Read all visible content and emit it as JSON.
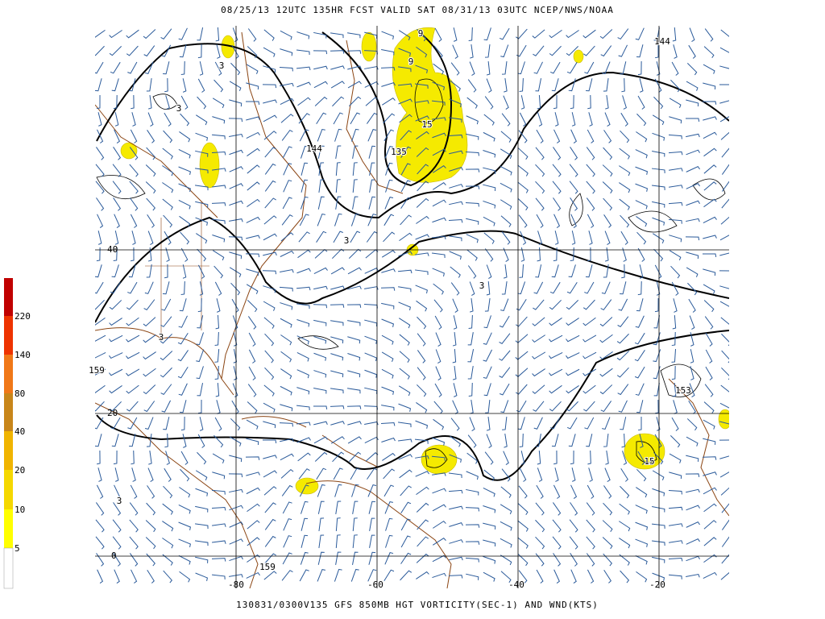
{
  "header": {
    "title": "08/25/13 12UTC  135HR  FCST VALID SAT 08/31/13 03UTC  NCEP/NWS/NOAA"
  },
  "footer": {
    "caption": "130831/0300V135 GFS 850MB HGT VORTICITY(SEC-1) AND WND(KTS)"
  },
  "colorbar": {
    "labels": [
      "5",
      "10",
      "20",
      "40",
      "80",
      "140",
      "220"
    ]
  },
  "map": {
    "lat_labels": [
      "40",
      "20",
      "0"
    ],
    "lon_labels": [
      "-80",
      "-60",
      "-40",
      "-20"
    ],
    "contour_labels": [
      "144",
      "144",
      "135",
      "153",
      "159",
      "159",
      "15",
      "15",
      "9",
      "9",
      "3",
      "3",
      "3",
      "3",
      "3",
      "3"
    ]
  }
}
